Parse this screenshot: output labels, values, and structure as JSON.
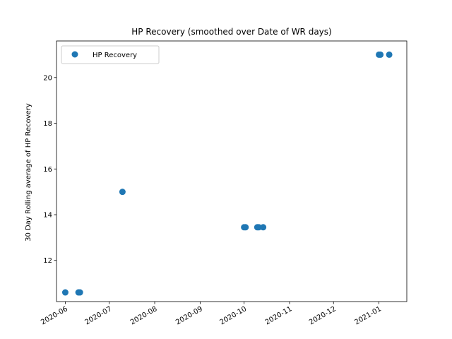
{
  "chart_data": {
    "type": "scatter",
    "title": "HP Recovery (smoothed over Date of WR days)",
    "xlabel": "",
    "ylabel": "30 Day Rolling average of HP Recovery",
    "x_axis": {
      "scale": "date",
      "range": [
        "2020-05-26",
        "2021-01-20"
      ],
      "ticks": [
        "2020-06-01",
        "2020-07-01",
        "2020-08-01",
        "2020-09-01",
        "2020-10-01",
        "2020-11-01",
        "2020-12-01",
        "2021-01-01"
      ],
      "tick_labels": [
        "2020-06",
        "2020-07",
        "2020-08",
        "2020-09",
        "2020-10",
        "2020-11",
        "2020-12",
        "2021-01"
      ],
      "tick_label_rotation": "30deg"
    },
    "y_axis": {
      "range": [
        10.2,
        21.6
      ],
      "ticks": [
        12,
        14,
        16,
        18,
        20
      ],
      "tick_labels": [
        "12",
        "14",
        "16",
        "18",
        "20"
      ]
    },
    "grid": false,
    "legend": {
      "placement": "upper-left",
      "entries": [
        "HP Recovery"
      ]
    },
    "series": [
      {
        "name": "HP Recovery",
        "color": "#1f77b4",
        "marker": "circle",
        "points": [
          {
            "x": "2020-06-01",
            "y": 10.6
          },
          {
            "x": "2020-06-10",
            "y": 10.6
          },
          {
            "x": "2020-06-11",
            "y": 10.6
          },
          {
            "x": "2020-07-10",
            "y": 15.0
          },
          {
            "x": "2020-10-01",
            "y": 13.45
          },
          {
            "x": "2020-10-02",
            "y": 13.45
          },
          {
            "x": "2020-10-10",
            "y": 13.45
          },
          {
            "x": "2020-10-11",
            "y": 13.45
          },
          {
            "x": "2020-10-14",
            "y": 13.45
          },
          {
            "x": "2021-01-01",
            "y": 21.0
          },
          {
            "x": "2021-01-02",
            "y": 21.0
          },
          {
            "x": "2021-01-08",
            "y": 21.0
          }
        ]
      }
    ]
  }
}
